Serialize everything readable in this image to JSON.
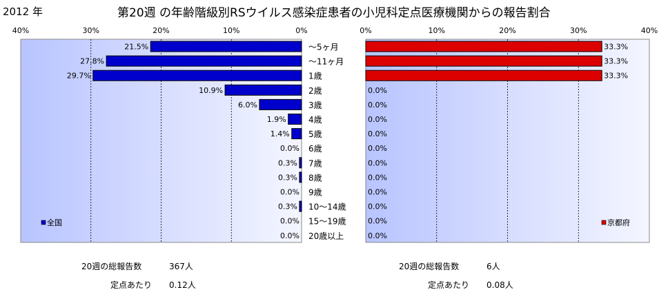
{
  "header": {
    "year": "2012 年",
    "title": "第20週 の年齢階級別RSウイルス感染症患者の小児科定点医療機関からの報告割合"
  },
  "chart_data": [
    {
      "type": "bar",
      "orientation": "horizontal",
      "direction": "right-to-left",
      "legend_label": "全国",
      "legend_position": "bottom-left",
      "color": "#0000cc",
      "xlim": [
        0,
        40
      ],
      "ticks": [
        "0%",
        "10%",
        "20%",
        "30%",
        "40%"
      ],
      "categories": [
        "～5ヶ月",
        "～11ヶ月",
        "1歳",
        "2歳",
        "3歳",
        "4歳",
        "5歳",
        "6歳",
        "7歳",
        "8歳",
        "9歳",
        "10～14歳",
        "15～19歳",
        "20歳以上"
      ],
      "values": [
        21.5,
        27.8,
        29.7,
        10.9,
        6.0,
        1.9,
        1.4,
        0.0,
        0.3,
        0.3,
        0.0,
        0.3,
        0.0,
        0.0
      ],
      "value_labels": [
        "21.5%",
        "27.8%",
        "29.7%",
        "10.9%",
        "6.0%",
        "1.9%",
        "1.4%",
        "0.0%",
        "0.3%",
        "0.3%",
        "0.0%",
        "0.3%",
        "0.0%",
        "0.0%"
      ],
      "grid": true
    },
    {
      "type": "bar",
      "orientation": "horizontal",
      "direction": "left-to-right",
      "legend_label": "京都府",
      "legend_position": "bottom-right",
      "color": "#dd0000",
      "xlim": [
        0,
        40
      ],
      "ticks": [
        "0%",
        "10%",
        "20%",
        "30%",
        "40%"
      ],
      "categories": [
        "～5ヶ月",
        "～11ヶ月",
        "1歳",
        "2歳",
        "3歳",
        "4歳",
        "5歳",
        "6歳",
        "7歳",
        "8歳",
        "9歳",
        "10～14歳",
        "15～19歳",
        "20歳以上"
      ],
      "values": [
        33.3,
        33.3,
        33.3,
        0.0,
        0.0,
        0.0,
        0.0,
        0.0,
        0.0,
        0.0,
        0.0,
        0.0,
        0.0,
        0.0
      ],
      "value_labels": [
        "33.3%",
        "33.3%",
        "33.3%",
        "0.0%",
        "0.0%",
        "0.0%",
        "0.0%",
        "0.0%",
        "0.0%",
        "0.0%",
        "0.0%",
        "0.0%",
        "0.0%",
        "0.0%"
      ],
      "grid": true
    }
  ],
  "stats": {
    "national": {
      "total_label": "20週の総報告数",
      "total_value": "367人",
      "per_site_label": "定点あたり",
      "per_site_value": "0.12人"
    },
    "kyoto": {
      "total_label": "20週の総報告数",
      "total_value": "6人",
      "per_site_label": "定点あたり",
      "per_site_value": "0.08人"
    }
  }
}
